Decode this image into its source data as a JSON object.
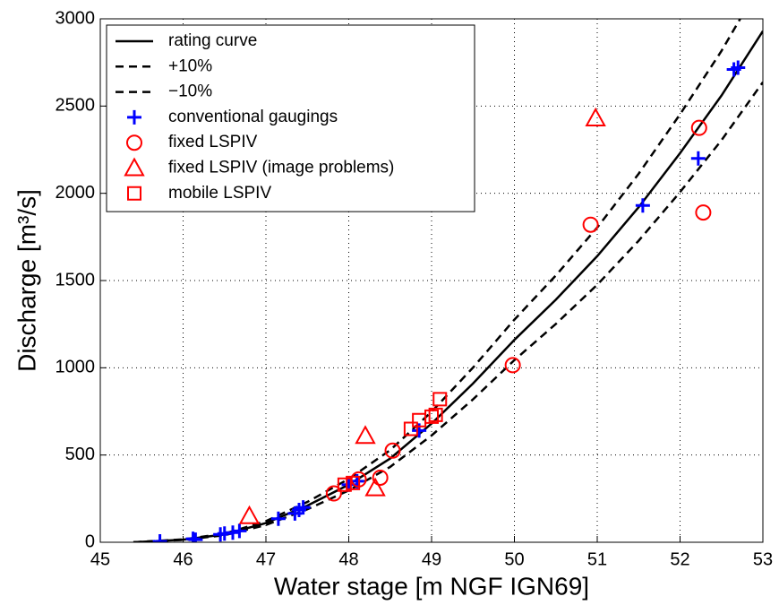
{
  "chart_data": {
    "type": "scatter",
    "xlabel": "Water stage [m NGF IGN69]",
    "ylabel": "Discharge [m³/s]",
    "xlim": [
      45,
      53
    ],
    "xticks": [
      45,
      46,
      47,
      48,
      49,
      50,
      51,
      52,
      53
    ],
    "ylim": [
      0,
      3000
    ],
    "yticks": [
      0,
      500,
      1000,
      1500,
      2000,
      2500,
      3000
    ],
    "grid": true,
    "legend": "upper-left",
    "series": [
      {
        "name": "rating curve",
        "color": "#000000",
        "marker": "line",
        "dash": "solid",
        "x": [
          45.4,
          46,
          46.5,
          47,
          47.5,
          48,
          48.5,
          49,
          49.5,
          50,
          50.5,
          51,
          51.5,
          52,
          52.5,
          53
        ],
        "values": [
          0,
          15,
          45,
          110,
          210,
          330,
          480,
          680,
          910,
          1160,
          1390,
          1640,
          1920,
          2230,
          2560,
          2930
        ]
      },
      {
        "name": "+10%",
        "color": "#000000",
        "marker": "line",
        "dash": "dashed",
        "x": [
          45.4,
          46,
          46.5,
          47,
          47.5,
          48,
          48.5,
          49,
          49.5,
          50,
          50.5,
          51,
          51.5,
          52,
          52.5,
          53
        ],
        "values": [
          0,
          16.5,
          49.5,
          121,
          231,
          363,
          528,
          748,
          1001,
          1276,
          1529,
          1804,
          2112,
          2453,
          2816,
          3223
        ]
      },
      {
        "name": "−10%",
        "color": "#000000",
        "marker": "line",
        "dash": "dashed",
        "x": [
          45.4,
          46,
          46.5,
          47,
          47.5,
          48,
          48.5,
          49,
          49.5,
          50,
          50.5,
          51,
          51.5,
          52,
          52.5,
          53
        ],
        "values": [
          0,
          13.5,
          40.5,
          99,
          189,
          297,
          432,
          612,
          819,
          1044,
          1251,
          1476,
          1728,
          2007,
          2304,
          2637
        ]
      },
      {
        "name": "conventional gaugings",
        "color": "#0000ff",
        "marker": "plus",
        "x": [
          45.72,
          46.12,
          46.15,
          46.45,
          46.5,
          46.6,
          46.68,
          47.15,
          47.35,
          47.4,
          47.45,
          48.0,
          48.1,
          48.85,
          51.55,
          52.22,
          52.65,
          52.7
        ],
        "values": [
          5,
          20,
          15,
          45,
          50,
          55,
          65,
          135,
          165,
          185,
          200,
          330,
          350,
          640,
          1930,
          2200,
          2710,
          2720
        ]
      },
      {
        "name": "fixed LSPIV",
        "color": "#ff0000",
        "marker": "circle",
        "x": [
          47.82,
          48.12,
          48.38,
          48.53,
          49.98,
          50.92,
          52.23,
          52.28
        ],
        "values": [
          280,
          360,
          370,
          525,
          1015,
          1820,
          2375,
          1890
        ]
      },
      {
        "name": "fixed LSPIV (image problems)",
        "color": "#ff0000",
        "marker": "triangle",
        "x": [
          46.8,
          48.2,
          48.32,
          50.98
        ],
        "values": [
          150,
          610,
          310,
          2430
        ]
      },
      {
        "name": "mobile LSPIV",
        "color": "#ff0000",
        "marker": "square",
        "x": [
          47.95,
          48.05,
          48.75,
          48.85,
          49.0,
          49.05,
          49.1
        ],
        "values": [
          330,
          340,
          650,
          700,
          720,
          730,
          820
        ]
      }
    ]
  }
}
